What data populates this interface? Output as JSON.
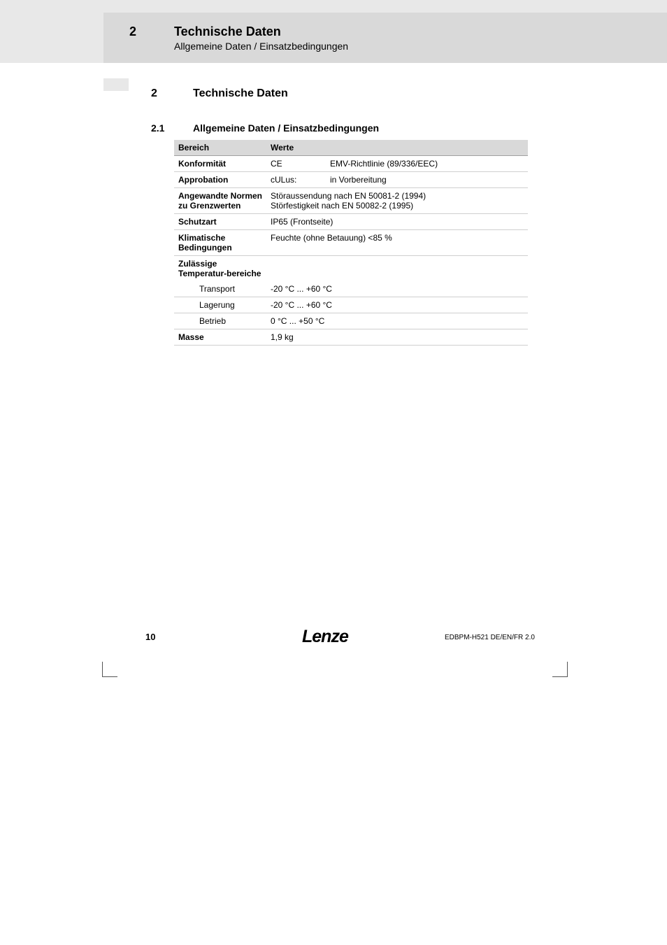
{
  "header": {
    "chapter_num": "2",
    "chapter_title": "Technische Daten",
    "chapter_sub": "Allgemeine Daten / Einsatzbedingungen"
  },
  "section": {
    "num": "2",
    "title": "Technische Daten"
  },
  "subsection": {
    "num": "2.1",
    "title": "Allgemeine Daten / Einsatzbedingungen"
  },
  "table": {
    "head_col1": "Bereich",
    "head_col2": "Werte",
    "rows": {
      "konformitaet": {
        "label": "Konformität",
        "c1": "CE",
        "c2": "EMV-Richtlinie (89/336/EEC)"
      },
      "approbation": {
        "label": "Approbation",
        "c1": "cULus:",
        "c2": "in Vorbereitung"
      },
      "normen": {
        "label": "Angewandte Normen zu Grenzwerten",
        "v1": "Störaussendung nach EN 50081-2 (1994)",
        "v2": "Störfestigkeit nach EN 50082-2 (1995)"
      },
      "schutzart": {
        "label": "Schutzart",
        "v": "IP65 (Frontseite)"
      },
      "klima": {
        "label": "Klimatische Bedingungen",
        "v": "Feuchte (ohne Betauung) <85 %"
      },
      "temp": {
        "label": "Zulässige Temperatur-bereiche"
      },
      "transport": {
        "label": "Transport",
        "v": "-20 °C ... +60 °C"
      },
      "lagerung": {
        "label": "Lagerung",
        "v": "-20 °C ... +60 °C"
      },
      "betrieb": {
        "label": "Betrieb",
        "v": "0 °C ... +50 °C"
      },
      "masse": {
        "label": "Masse",
        "v": "1,9 kg"
      }
    }
  },
  "footer": {
    "page_num": "10",
    "logo": "Lenze",
    "docref": "EDBPM-H521  DE/EN/FR  2.0"
  },
  "colors": {
    "band": "#e8e8e8",
    "inner": "#d9d9d9",
    "row_border": "#cfcfcf"
  }
}
